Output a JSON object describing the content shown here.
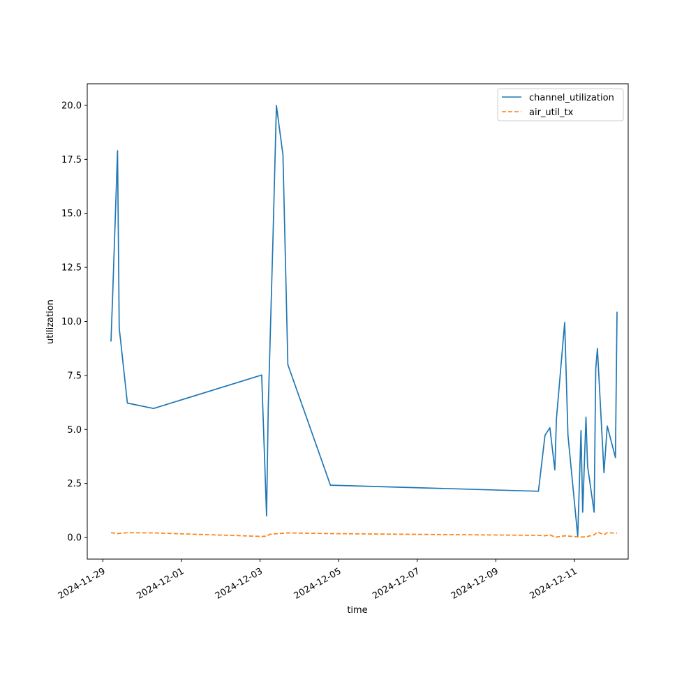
{
  "chart_data": {
    "type": "line",
    "title": "",
    "xlabel": "time",
    "ylabel": "utilization",
    "x_ticks": [
      "2024-11-29",
      "2024-12-01",
      "2024-12-03",
      "2024-12-05",
      "2024-12-07",
      "2024-12-09",
      "2024-12-11"
    ],
    "y_ticks": [
      "0.0",
      "2.5",
      "5.0",
      "7.5",
      "10.0",
      "12.5",
      "15.0",
      "17.5",
      "20.0"
    ],
    "xlim": [
      "2024-11-28T14:30",
      "2024-12-12T08:48"
    ],
    "ylim": [
      -1.0,
      21.0
    ],
    "grid": false,
    "legend_position": "top-right",
    "series": [
      {
        "name": "channel_utilization",
        "color": "#1f77b4",
        "style": "solid",
        "points": [
          [
            "2024-11-29T05:00",
            9.07
          ],
          [
            "2024-11-29T06:00",
            11.2
          ],
          [
            "2024-11-29T09:00",
            17.9
          ],
          [
            "2024-11-29T10:00",
            9.7
          ],
          [
            "2024-11-29T15:00",
            6.22
          ],
          [
            "2024-11-30T07:00",
            5.97
          ],
          [
            "2024-12-03T01:00",
            7.52
          ],
          [
            "2024-12-03T04:00",
            1.0
          ],
          [
            "2024-12-03T05:00",
            6.0
          ],
          [
            "2024-12-03T08:00",
            14.1
          ],
          [
            "2024-12-03T10:00",
            20.0
          ],
          [
            "2024-12-03T14:00",
            17.7
          ],
          [
            "2024-12-03T17:00",
            8.0
          ],
          [
            "2024-12-04T19:00",
            2.42
          ],
          [
            "2024-12-10T02:00",
            2.14
          ],
          [
            "2024-12-10T06:00",
            4.73
          ],
          [
            "2024-12-10T09:00",
            5.08
          ],
          [
            "2024-12-10T12:00",
            3.13
          ],
          [
            "2024-12-10T13:00",
            5.5
          ],
          [
            "2024-12-10T18:00",
            9.95
          ],
          [
            "2024-12-10T20:00",
            4.73
          ],
          [
            "2024-12-11T02:00",
            0.05
          ],
          [
            "2024-12-11T04:00",
            4.95
          ],
          [
            "2024-12-11T05:00",
            1.17
          ],
          [
            "2024-12-11T07:00",
            5.57
          ],
          [
            "2024-12-11T08:00",
            3.3
          ],
          [
            "2024-12-11T12:00",
            1.17
          ],
          [
            "2024-12-11T13:00",
            7.8
          ],
          [
            "2024-12-11T14:00",
            8.75
          ],
          [
            "2024-12-11T18:00",
            3.0
          ],
          [
            "2024-12-11T20:00",
            5.16
          ],
          [
            "2024-12-12T01:00",
            3.7
          ],
          [
            "2024-12-12T02:00",
            10.45
          ]
        ]
      },
      {
        "name": "air_util_tx",
        "color": "#ff7f0e",
        "style": "dashed",
        "points": [
          [
            "2024-11-29T05:00",
            0.22
          ],
          [
            "2024-11-29T09:00",
            0.18
          ],
          [
            "2024-11-29T15:00",
            0.22
          ],
          [
            "2024-11-30T07:00",
            0.21
          ],
          [
            "2024-12-03T01:00",
            0.05
          ],
          [
            "2024-12-03T04:00",
            0.06
          ],
          [
            "2024-12-03T06:00",
            0.15
          ],
          [
            "2024-12-03T17:00",
            0.21
          ],
          [
            "2024-12-04T19:00",
            0.18
          ],
          [
            "2024-12-10T02:00",
            0.1
          ],
          [
            "2024-12-10T06:00",
            0.08
          ],
          [
            "2024-12-10T09:00",
            0.12
          ],
          [
            "2024-12-10T12:00",
            0.02
          ],
          [
            "2024-12-10T14:00",
            0.03
          ],
          [
            "2024-12-10T18:00",
            0.08
          ],
          [
            "2024-12-11T02:00",
            0.03
          ],
          [
            "2024-12-11T05:00",
            0.02
          ],
          [
            "2024-12-11T08:00",
            0.05
          ],
          [
            "2024-12-11T12:00",
            0.12
          ],
          [
            "2024-12-11T14:00",
            0.25
          ],
          [
            "2024-12-11T18:00",
            0.13
          ],
          [
            "2024-12-11T20:00",
            0.22
          ],
          [
            "2024-12-12T02:00",
            0.2
          ]
        ]
      }
    ]
  }
}
